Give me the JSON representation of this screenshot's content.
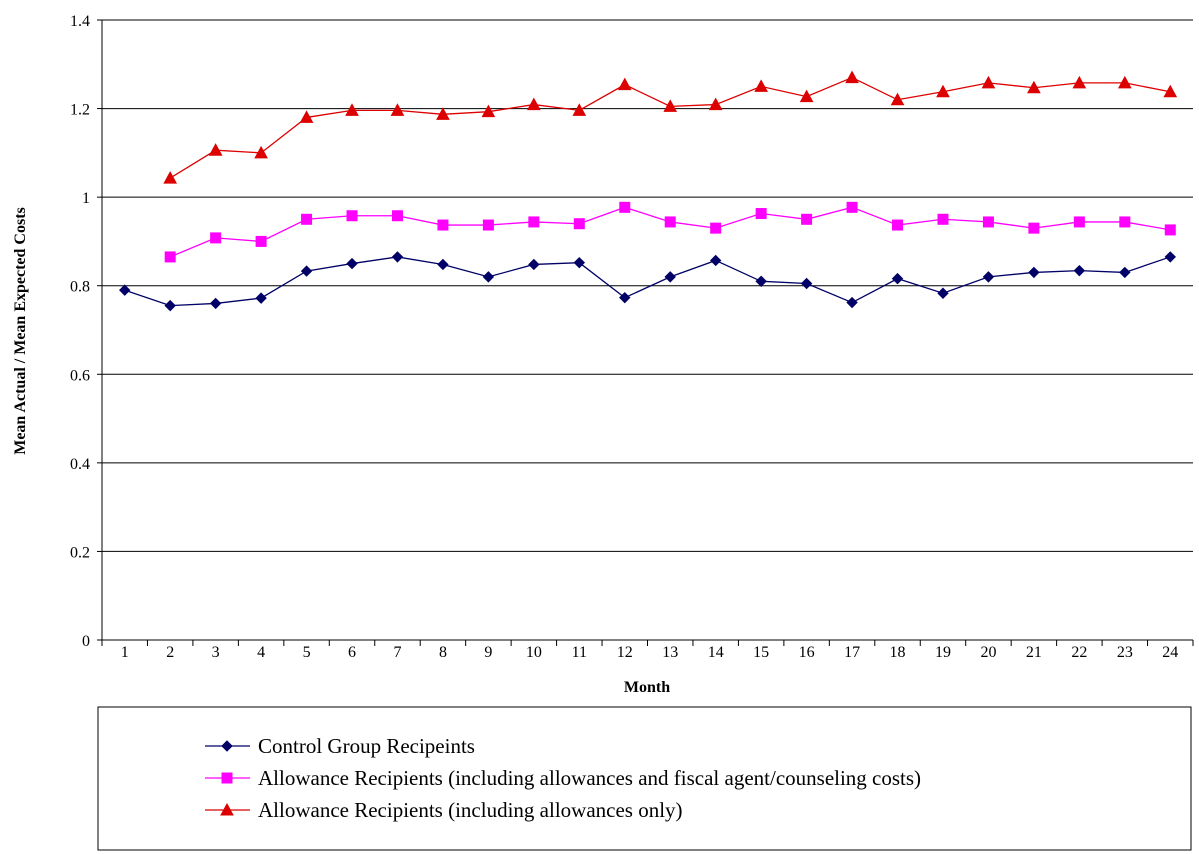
{
  "chart_data": {
    "type": "line",
    "xlabel": "Month",
    "ylabel": "Mean Actual / Mean Expected Costs",
    "ylim": [
      0,
      1.4
    ],
    "yticks": [
      "0",
      "0.2",
      "0.4",
      "0.6",
      "0.8",
      "1",
      "1.2",
      "1.4"
    ],
    "categories": [
      "1",
      "2",
      "3",
      "4",
      "5",
      "6",
      "7",
      "8",
      "9",
      "10",
      "11",
      "12",
      "13",
      "14",
      "15",
      "16",
      "17",
      "18",
      "19",
      "20",
      "21",
      "22",
      "23",
      "24"
    ],
    "grid": "horizontal",
    "legend_position": "bottom",
    "series": [
      {
        "name": "Control Group Recipeints",
        "color": "#000066",
        "marker": "diamond",
        "values": [
          0.79,
          0.755,
          0.76,
          0.772,
          0.833,
          0.85,
          0.865,
          0.848,
          0.82,
          0.848,
          0.852,
          0.773,
          0.82,
          0.857,
          0.81,
          0.805,
          0.762,
          0.816,
          0.783,
          0.82,
          0.83,
          0.834,
          0.83,
          0.865
        ]
      },
      {
        "name": "Allowance Recipients (including allowances and fiscal agent/counseling costs)",
        "color": "#ff00ff",
        "marker": "square",
        "values": [
          null,
          0.865,
          0.908,
          0.9,
          0.95,
          0.958,
          0.958,
          0.937,
          0.937,
          0.944,
          0.94,
          0.977,
          0.944,
          0.93,
          0.963,
          0.95,
          0.977,
          0.937,
          0.95,
          0.944,
          0.93,
          0.944,
          0.944,
          0.926
        ]
      },
      {
        "name": "Allowance Recipients (including allowances only)",
        "color": "#dd0000",
        "marker": "triangle",
        "values": [
          null,
          1.043,
          1.106,
          1.1,
          1.18,
          1.196,
          1.196,
          1.187,
          1.193,
          1.209,
          1.196,
          1.254,
          1.205,
          1.209,
          1.25,
          1.227,
          1.27,
          1.22,
          1.238,
          1.258,
          1.247,
          1.258,
          1.258,
          1.238
        ]
      }
    ]
  }
}
